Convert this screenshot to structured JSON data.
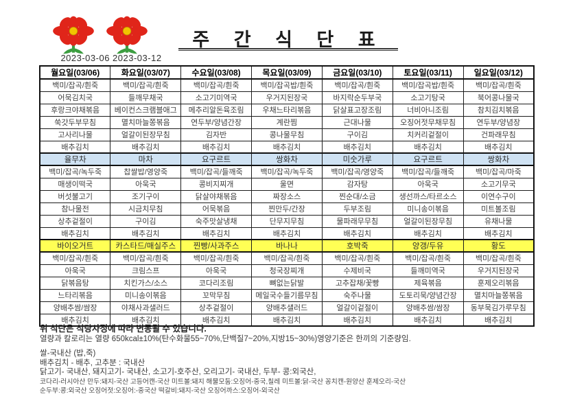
{
  "header": {
    "title": "주 간 식 단 표",
    "date_range": "2023-03-06 2023-03-12",
    "flower_icons": [
      "flower-icon",
      "flower-icon"
    ]
  },
  "colors": {
    "snack_blue": "#cfe2f3",
    "snack_yellow": "#ffff55",
    "flower_red": "#e0251a",
    "flower_center": "#f2c400",
    "flower_green": "#3d9e41",
    "border": "#111111"
  },
  "table": {
    "days": [
      "월요일(03/06)",
      "화요일(03/07)",
      "수요일(03/08)",
      "목요일(03/09)",
      "금요일(03/10)",
      "토요일(03/11)",
      "일요일(03/12)"
    ],
    "sections": [
      {
        "name": "breakfast-menu",
        "type": "menu",
        "columns": [
          [
            "백미/잡곡/흰죽",
            "어묵김치국",
            "후랑크야채볶음",
            "쑥갓두부무침",
            "고사리나물",
            "배추김치"
          ],
          [
            "백미/잡곡/흰죽",
            "들깨무채국",
            "베이컨스크램블애그",
            "멸치마늘쫑볶음",
            "얼갈이된장무침",
            "배추김치"
          ],
          [
            "백미/잡곡/흰죽",
            "소고기미역국",
            "메추리알돈육조림",
            "연두부/양념간장",
            "김자반",
            "배추김치"
          ],
          [
            "백미/잡곡밥/흰죽",
            "우거지된장국",
            "우채느타리볶음",
            "계란찜",
            "콩나물무침",
            "배추김치"
          ],
          [
            "백미/잡곡/흰죽",
            "바지락순두부국",
            "닭살표고장조림",
            "근대나물",
            "구이김",
            "배추김치"
          ],
          [
            "백미/잡곡밥/흰죽",
            "소고기탕국",
            "너비아니조림",
            "오징어젓무채무침",
            "치커리겉절이",
            "배추김치"
          ],
          [
            "백미/잡곡/흰죽",
            "북어콩나물국",
            "참치김치볶음",
            "연두부/양념장",
            "건파래무침",
            "배추김치"
          ]
        ]
      },
      {
        "name": "morning-snack-row",
        "type": "snack-blue",
        "items": [
          "율무차",
          "마차",
          "요구르트",
          "쌍화차",
          "미숫가루",
          "요구르트",
          "쌍화차"
        ]
      },
      {
        "name": "lunch-menu",
        "type": "menu",
        "columns": [
          [
            "백미/잡곡/녹두죽",
            "매생이떡국",
            "버섯불고기",
            "참나물전",
            "상추겉절이",
            "배추김치"
          ],
          [
            "찹쌀밥/영양죽",
            "아욱국",
            "조기구이",
            "시금치무침",
            "구이김",
            "배추김치"
          ],
          [
            "백미/잡곡/들깨죽",
            "콩비지찌개",
            "닭살야채볶음",
            "어묵볶음",
            "숙주맛살냉채",
            "배추김치"
          ],
          [
            "백미/잡곡/녹두죽",
            "울면",
            "짜장소스",
            "찐만두/간장",
            "단무지무침",
            "배추김치"
          ],
          [
            "백미/잡곡/영양죽",
            "감자탕",
            "찐순대/소금",
            "두부조림",
            "물파래무무침",
            "배추김치"
          ],
          [
            "백미/잡곡/들깨죽",
            "아욱국",
            "생선까스/타르소스",
            "미니송이볶음",
            "얼갈이된장무침",
            "배추김치"
          ],
          [
            "백미/잡곡/마죽",
            "소고기무국",
            "이연수구이",
            "미트볼조림",
            "유채나물",
            "배추김치"
          ]
        ]
      },
      {
        "name": "afternoon-snack-row",
        "type": "snack-yellow",
        "items": [
          "바이오거트",
          "카스타드/매실주스",
          "찐빵/사과주스",
          "바나나",
          "호박죽",
          "양갱/두유",
          "황도"
        ]
      },
      {
        "name": "dinner-menu",
        "type": "menu",
        "columns": [
          [
            "백미/잡곡/흰죽",
            "아욱국",
            "닭볶음탕",
            "느타리볶음",
            "양배추쌈/쌈장",
            "배추김치"
          ],
          [
            "백미/잡곡/흰죽",
            "크림스프",
            "치킨가스/소스",
            "미니송이볶음",
            "야채사과샐러드",
            "배추김치"
          ],
          [
            "백미/잡곡/흰죽",
            "아욱국",
            "코다리조림",
            "꼬막무침",
            "상추겉절이",
            "배추김치"
          ],
          [
            "백미/잡곡/흰죽",
            "청국장찌개",
            "뼈없는닭발",
            "메일국수들기름무침",
            "양배추샐러드",
            "배추김치"
          ],
          [
            "백미/잡곡/흰죽",
            "수제비국",
            "고추잡채/꽃빵",
            "숙주나물",
            "얼갈이겉절이",
            "배추김치"
          ],
          [
            "백미/잡곡/흰죽",
            "들깨미역국",
            "제육볶음",
            "도토리묵/양념간장",
            "양배추쌈/쌈장",
            "배추김치"
          ],
          [
            "백미/잡곡/흰죽",
            "우거지된장국",
            "훈제오리볶음",
            "멸치마늘쫑볶음",
            "동부묵김가루무침",
            "배추김치"
          ]
        ]
      }
    ]
  },
  "footer": {
    "notice": "위 식단은 식당사정에 따라 변동될 수 있습니다.",
    "nutrition": "열량과 칼로리는 열량 650kcal±10%(탄수화물55~70%,단백질7~20%,지방15~30%)영양기준은 한끼의 기준량임.",
    "origins": [
      "쌀-국내산 (밥,죽)",
      "배추김치 - 배추, 고추분 : 국내산",
      "닭고기- 국내산, 돼지고기- 국내산, 소고기-호주산, 오리고기- 국내산, 두부- 콩:외국산,",
      "코다리-러시아산 만두:돼지-국산 고등어캔-국산 미트볼:돼지 해물모둠:오징어-중국,칠레 미트볼:닭-국산 꽁치캔-원양산 훈제오리-국산",
      "순두부:콩:외국산 오징어젓:오징어:-중국산 떡갈비:돼지-국산 오징어까스:오징어-외국산"
    ]
  }
}
